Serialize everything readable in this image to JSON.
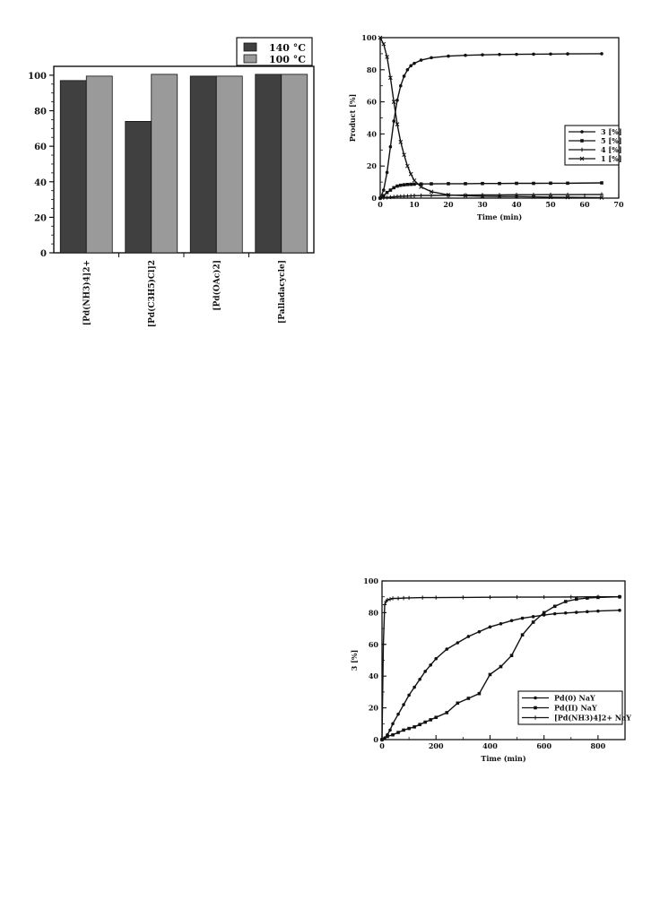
{
  "chart_data": [
    {
      "type": "bar",
      "categories": [
        "[Pd(NH3)4]2+",
        "[Pd(C3H5)Cl]2",
        "[Pd(OAc)2]",
        "[Palladacycle]"
      ],
      "series": [
        {
          "name": "140 °C",
          "values": [
            97,
            74,
            99.5,
            100.5
          ],
          "color": "#404040"
        },
        {
          "name": "100 °C",
          "values": [
            99.5,
            100.5,
            99.5,
            100.5
          ],
          "color": "#9a9a9a"
        }
      ],
      "yticks": [
        "0",
        "20",
        "40",
        "60",
        "80",
        "100"
      ],
      "ylim": [
        0,
        105
      ],
      "legend_position": "top-right"
    },
    {
      "type": "line",
      "ylabel": "Product [%]",
      "xlabel": "Time (min)",
      "xticks": [
        "0",
        "10",
        "20",
        "30",
        "40",
        "50",
        "60",
        "70"
      ],
      "yticks": [
        "0",
        "20",
        "40",
        "60",
        "80",
        "100"
      ],
      "xlim": [
        0,
        70
      ],
      "ylim": [
        0,
        100
      ],
      "legend_position": "center-right",
      "series": [
        {
          "name": "3 [%]",
          "marker": "circle",
          "x": [
            0,
            1,
            2,
            3,
            4,
            5,
            6,
            7,
            8,
            9,
            10,
            12,
            15,
            20,
            25,
            30,
            35,
            40,
            45,
            50,
            55,
            65
          ],
          "y": [
            0,
            5,
            16,
            32,
            48,
            61,
            70,
            76,
            80,
            82.5,
            84,
            86,
            87.5,
            88.5,
            89,
            89.3,
            89.5,
            89.6,
            89.7,
            89.8,
            89.9,
            90
          ]
        },
        {
          "name": "5 [%]",
          "marker": "square",
          "x": [
            0,
            1,
            2,
            3,
            4,
            5,
            6,
            7,
            8,
            9,
            10,
            12,
            15,
            20,
            25,
            30,
            35,
            40,
            45,
            50,
            55,
            65
          ],
          "y": [
            0,
            1.5,
            3.5,
            5,
            6.5,
            7.5,
            8,
            8.3,
            8.5,
            8.6,
            8.7,
            8.8,
            8.9,
            9,
            9,
            9.1,
            9.1,
            9.2,
            9.2,
            9.3,
            9.3,
            9.5
          ]
        },
        {
          "name": "4 [%]",
          "marker": "plus",
          "x": [
            0,
            1,
            2,
            3,
            4,
            5,
            6,
            7,
            8,
            9,
            10,
            12,
            15,
            20,
            25,
            30,
            35,
            40,
            45,
            50,
            55,
            65
          ],
          "y": [
            0,
            0.2,
            0.4,
            0.6,
            0.8,
            1,
            1.1,
            1.2,
            1.3,
            1.4,
            1.5,
            1.6,
            1.7,
            1.8,
            1.9,
            2,
            2,
            2.1,
            2.1,
            2.2,
            2.2,
            2.3
          ]
        },
        {
          "name": "1 [%]",
          "marker": "cross",
          "x": [
            0,
            1,
            2,
            3,
            4,
            5,
            6,
            7,
            8,
            9,
            10,
            12,
            15,
            20,
            25,
            30,
            35,
            40,
            45,
            50,
            55,
            65
          ],
          "y": [
            100,
            96,
            88,
            75,
            60,
            46,
            35,
            27,
            20,
            15,
            11,
            7,
            4,
            2,
            1.5,
            1.2,
            1,
            1,
            0.8,
            0.6,
            0.5,
            0.3
          ]
        }
      ]
    },
    {
      "type": "line",
      "ylabel": "3 [%]",
      "xlabel": "Time (min)",
      "xticks": [
        "0",
        "200",
        "400",
        "600",
        "800"
      ],
      "yticks": [
        "0",
        "20",
        "40",
        "60",
        "80",
        "100"
      ],
      "xlim": [
        0,
        900
      ],
      "ylim": [
        0,
        100
      ],
      "legend_position": "bottom-right",
      "series": [
        {
          "name": "Pd(0) NaY",
          "marker": "circle",
          "x": [
            0,
            10,
            20,
            30,
            40,
            60,
            80,
            100,
            120,
            140,
            160,
            180,
            200,
            240,
            280,
            320,
            360,
            400,
            440,
            480,
            520,
            560,
            600,
            640,
            680,
            720,
            760,
            800,
            880
          ],
          "y": [
            0,
            1,
            3,
            6,
            10,
            16,
            22,
            28,
            33,
            38,
            43,
            47,
            51,
            57,
            61,
            65,
            68,
            71,
            73,
            75,
            76.5,
            77.5,
            78.5,
            79.3,
            79.8,
            80.2,
            80.6,
            81,
            81.5
          ]
        },
        {
          "name": "Pd(II) NaY",
          "marker": "square",
          "x": [
            0,
            20,
            40,
            60,
            80,
            100,
            120,
            140,
            160,
            180,
            200,
            240,
            280,
            320,
            360,
            400,
            440,
            480,
            520,
            560,
            600,
            640,
            680,
            720,
            760,
            800,
            880
          ],
          "y": [
            0,
            2,
            3,
            4.5,
            6,
            7,
            8,
            9.5,
            11,
            12.5,
            14,
            17,
            23,
            26,
            29,
            41,
            46,
            53,
            66,
            74,
            80,
            84,
            87,
            88.5,
            89.2,
            89.6,
            90
          ]
        },
        {
          "name": "[Pd(NH3)4]2+  NaY",
          "marker": "plus",
          "x": [
            0,
            5,
            10,
            15,
            20,
            30,
            40,
            60,
            80,
            100,
            150,
            200,
            300,
            400,
            500,
            600,
            700,
            800,
            880
          ],
          "y": [
            0,
            60,
            85,
            87,
            88,
            88.5,
            89,
            89,
            89.2,
            89.3,
            89.5,
            89.5,
            89.6,
            89.7,
            89.8,
            89.8,
            89.9,
            90,
            90
          ]
        }
      ]
    }
  ]
}
